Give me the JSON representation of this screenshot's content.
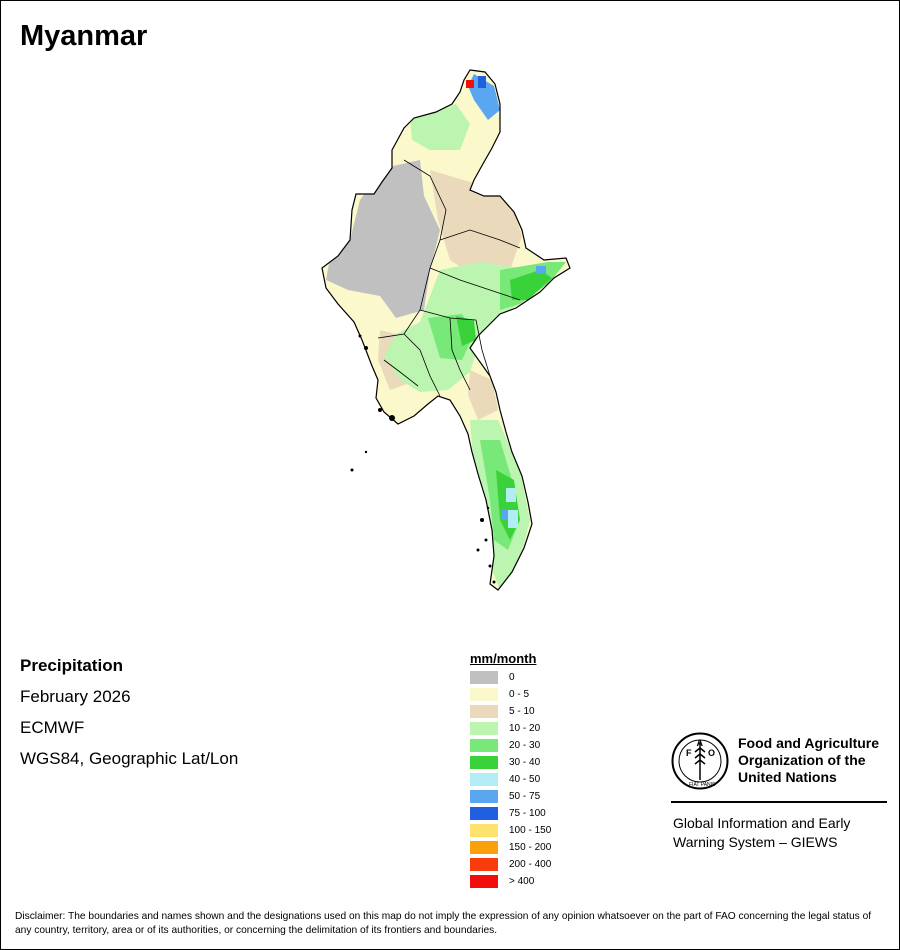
{
  "title": "Myanmar",
  "info": {
    "variable": "Precipitation",
    "period": "February 2026",
    "source": "ECMWF",
    "projection": "WGS84, Geographic Lat/Lon"
  },
  "legend": {
    "unit": "mm/month",
    "items": [
      {
        "label": "0",
        "color": "#c0c0c0"
      },
      {
        "label": "0 - 5",
        "color": "#fbf8cc"
      },
      {
        "label": "5 - 10",
        "color": "#ead9bb"
      },
      {
        "label": "10 - 20",
        "color": "#bcf5b0"
      },
      {
        "label": "20 - 30",
        "color": "#78e878"
      },
      {
        "label": "30 - 40",
        "color": "#3ad23a"
      },
      {
        "label": "40 - 50",
        "color": "#b2ecf4"
      },
      {
        "label": "50 - 75",
        "color": "#5aa6f0"
      },
      {
        "label": "75 - 100",
        "color": "#1f5fe0"
      },
      {
        "label": "100 - 150",
        "color": "#fde36e"
      },
      {
        "label": "150 - 200",
        "color": "#f9a00a"
      },
      {
        "label": "200 - 400",
        "color": "#f83c0c"
      },
      {
        "label": "> 400",
        "color": "#f30e0e"
      }
    ]
  },
  "fao": {
    "logo_letters": [
      "F",
      "A",
      "O"
    ],
    "motto": "FIAT PANIS",
    "org_lines": [
      "Food and Agriculture",
      "Organization of the",
      "United Nations"
    ],
    "system_lines": [
      "Global Information and Early",
      "Warning System – GIEWS"
    ]
  },
  "disclaimer": "Disclaimer: The boundaries and names shown and the designations used on this map do not imply the expression of any opinion whatsoever on the part of FAO concerning the legal status of any country, territory, area or of its authorities, or concerning the delimitation of its frontiers and boundaries."
}
